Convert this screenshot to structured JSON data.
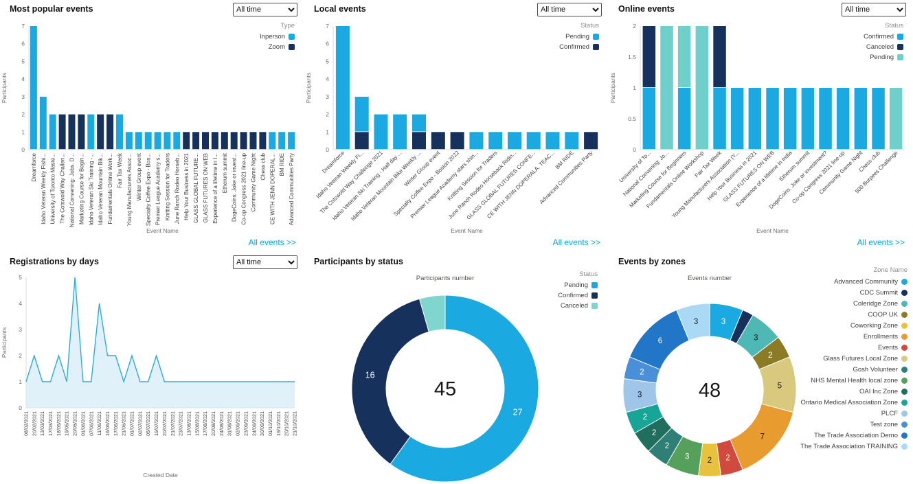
{
  "filters": {
    "time_range": "All time"
  },
  "links": {
    "all_events": "All events >>"
  },
  "panels": {
    "most_popular": {
      "title": "Most popular events"
    },
    "local": {
      "title": "Local events"
    },
    "online": {
      "title": "Online events"
    },
    "registrations": {
      "title": "Registrations by days"
    },
    "participants_status": {
      "title": "Participants by status"
    },
    "events_zones": {
      "title": "Events by zones"
    }
  },
  "chart_data": [
    {
      "panel": "most_popular",
      "type": "bar",
      "title": "Most popular events",
      "xlabel": "Event Name",
      "ylabel": "Participants",
      "ylim": [
        0,
        7
      ],
      "yticks": [
        0,
        1,
        2,
        3,
        4,
        5,
        6,
        7
      ],
      "legend_title": "Type",
      "legend": [
        "Inperson",
        "Zoom"
      ],
      "legend_shape": "square",
      "series_colors": {
        "Inperson": "#1BA9E1",
        "Zoom": "#16325C"
      },
      "bars": [
        {
          "label": "Dreamforce",
          "segments": [
            {
              "series": "Inperson",
              "value": 7
            }
          ]
        },
        {
          "label": "Idaho Veteran Weekly Fishi...",
          "segments": [
            {
              "series": "Inperson",
              "value": 3
            }
          ]
        },
        {
          "label": "University of Toronto Maste...",
          "segments": [
            {
              "series": "Inperson",
              "value": 2
            }
          ]
        },
        {
          "label": "The Cotswold Way Challen...",
          "segments": [
            {
              "series": "Zoom",
              "value": 2
            }
          ]
        },
        {
          "label": "National Convening: Jobs. D...",
          "segments": [
            {
              "series": "Zoom",
              "value": 2
            }
          ]
        },
        {
          "label": "Marketing Course for Begin...",
          "segments": [
            {
              "series": "Zoom",
              "value": 2
            }
          ]
        },
        {
          "label": "Idaho Veteran Ski Training -...",
          "segments": [
            {
              "series": "Inperson",
              "value": 2
            }
          ]
        },
        {
          "label": "Idaho Veteran Mountain Bik...",
          "segments": [
            {
              "series": "Zoom",
              "value": 2
            }
          ]
        },
        {
          "label": "Fundamentals Online Work...",
          "segments": [
            {
              "series": "Zoom",
              "value": 2
            }
          ]
        },
        {
          "label": "Fair Tax Week",
          "segments": [
            {
              "series": "Inperson",
              "value": 2
            }
          ]
        },
        {
          "label": "Young Manufacturers Assoc...",
          "segments": [
            {
              "series": "Inperson",
              "value": 1
            }
          ]
        },
        {
          "label": "Winter Group event",
          "segments": [
            {
              "series": "Inperson",
              "value": 1
            }
          ]
        },
        {
          "label": "Specialty Coffee Expo - Bos...",
          "segments": [
            {
              "series": "Inperson",
              "value": 1
            }
          ]
        },
        {
          "label": "Premier League Academy s...",
          "segments": [
            {
              "series": "Inperson",
              "value": 1
            }
          ]
        },
        {
          "label": "Knitting Session for Traders",
          "segments": [
            {
              "series": "Inperson",
              "value": 1
            }
          ]
        },
        {
          "label": "June Ranch Rodeo Horseb...",
          "segments": [
            {
              "series": "Inperson",
              "value": 1
            }
          ]
        },
        {
          "label": "Help Your Business in 2021",
          "segments": [
            {
              "series": "Zoom",
              "value": 1
            }
          ]
        },
        {
          "label": "GLASS GLOBAL FUTURE...",
          "segments": [
            {
              "series": "Zoom",
              "value": 1
            }
          ]
        },
        {
          "label": "GLASS FUTURES ON WEB",
          "segments": [
            {
              "series": "Zoom",
              "value": 1
            }
          ]
        },
        {
          "label": "Experience of a lifetime in I...",
          "segments": [
            {
              "series": "Zoom",
              "value": 1
            }
          ]
        },
        {
          "label": "Etherum summit",
          "segments": [
            {
              "series": "Zoom",
              "value": 1
            }
          ]
        },
        {
          "label": "DogeCoins. Joke or invest...",
          "segments": [
            {
              "series": "Zoom",
              "value": 1
            }
          ]
        },
        {
          "label": "Co-op Congress 2021 line-up",
          "segments": [
            {
              "series": "Zoom",
              "value": 1
            }
          ]
        },
        {
          "label": "Community Game Night",
          "segments": [
            {
              "series": "Zoom",
              "value": 1
            }
          ]
        },
        {
          "label": "Chess club",
          "segments": [
            {
              "series": "Zoom",
              "value": 1
            }
          ]
        },
        {
          "label": "CE WITH JENN DOPERAL...",
          "segments": [
            {
              "series": "Inperson",
              "value": 1
            }
          ]
        },
        {
          "label": "BM RIDE",
          "segments": [
            {
              "series": "Inperson",
              "value": 1
            }
          ]
        },
        {
          "label": "Advanced Communities Party",
          "segments": [
            {
              "series": "Inperson",
              "value": 1
            }
          ]
        }
      ]
    },
    {
      "panel": "local",
      "type": "bar",
      "title": "Local events",
      "xlabel": "Event Name",
      "ylabel": "Participants",
      "ylim": [
        0,
        7
      ],
      "yticks": [
        0,
        1,
        2,
        3,
        4,
        5,
        6,
        7
      ],
      "legend_title": "Status",
      "legend": [
        "Pending",
        "Confirmed"
      ],
      "legend_shape": "square",
      "series_colors": {
        "Pending": "#1BA9E1",
        "Confirmed": "#16325C"
      },
      "bars": [
        {
          "label": "Dreamforce",
          "segments": [
            {
              "series": "Pending",
              "value": 7
            }
          ]
        },
        {
          "label": "Idaho Veteran Weekly Fi...",
          "segments": [
            {
              "series": "Confirmed",
              "value": 1
            },
            {
              "series": "Pending",
              "value": 2
            }
          ]
        },
        {
          "label": "The Cotswold Way Challenge 2021",
          "segments": [
            {
              "series": "Pending",
              "value": 2
            }
          ]
        },
        {
          "label": "Idaho Veteran Ski Training - Half day ...",
          "segments": [
            {
              "series": "Pending",
              "value": 2
            }
          ]
        },
        {
          "label": "Idaho Veteran Mountain Bike Weekly ...",
          "segments": [
            {
              "series": "Confirmed",
              "value": 1
            },
            {
              "series": "Pending",
              "value": 1
            }
          ]
        },
        {
          "label": "Winter Group event",
          "segments": [
            {
              "series": "Confirmed",
              "value": 1
            }
          ]
        },
        {
          "label": "Specialty Coffee Expo - Boston 2022",
          "segments": [
            {
              "series": "Confirmed",
              "value": 1
            }
          ]
        },
        {
          "label": "Premier League Academy stars shin...",
          "segments": [
            {
              "series": "Pending",
              "value": 1
            }
          ]
        },
        {
          "label": "Knitting Session for Traders",
          "segments": [
            {
              "series": "Pending",
              "value": 1
            }
          ]
        },
        {
          "label": "June Ranch Rodeo Horseback Ridin...",
          "segments": [
            {
              "series": "Pending",
              "value": 1
            }
          ]
        },
        {
          "label": "GLASS GLOBAL FUTURES CONFE...",
          "segments": [
            {
              "series": "Pending",
              "value": 1
            }
          ]
        },
        {
          "label": "CE WITH JENN DOPERALA. TEAC...",
          "segments": [
            {
              "series": "Pending",
              "value": 1
            }
          ]
        },
        {
          "label": "BM RIDE",
          "segments": [
            {
              "series": "Pending",
              "value": 1
            }
          ]
        },
        {
          "label": "Advanced Communities Party",
          "segments": [
            {
              "series": "Confirmed",
              "value": 1
            }
          ]
        }
      ]
    },
    {
      "panel": "online",
      "type": "bar",
      "title": "Online events",
      "xlabel": "Event Name",
      "ylabel": "Participants",
      "ylim": [
        0,
        2
      ],
      "yticks": [
        0,
        0.5,
        1,
        1.5,
        2
      ],
      "legend_title": "Status",
      "legend": [
        "Confirmed",
        "Canceled",
        "Pending"
      ],
      "legend_shape": "square",
      "series_colors": {
        "Confirmed": "#1BA9E1",
        "Canceled": "#16325C",
        "Pending": "#6FCFCB"
      },
      "bars": [
        {
          "label": "University of To...",
          "segments": [
            {
              "series": "Confirmed",
              "value": 1
            },
            {
              "series": "Canceled",
              "value": 1
            }
          ]
        },
        {
          "label": "National Convening: Jo...",
          "segments": [
            {
              "series": "Pending",
              "value": 2
            }
          ]
        },
        {
          "label": "Marketing Course for Beginners",
          "segments": [
            {
              "series": "Confirmed",
              "value": 1
            },
            {
              "series": "Pending",
              "value": 1
            }
          ]
        },
        {
          "label": "Fundamentals Online Workshop",
          "segments": [
            {
              "series": "Pending",
              "value": 2
            }
          ]
        },
        {
          "label": "Fair Tax Week",
          "segments": [
            {
              "series": "Confirmed",
              "value": 1
            },
            {
              "series": "Canceled",
              "value": 1
            }
          ]
        },
        {
          "label": "Young Manufacturers Association (Y...",
          "segments": [
            {
              "series": "Confirmed",
              "value": 1
            }
          ]
        },
        {
          "label": "Help Your Business in 2021",
          "segments": [
            {
              "series": "Confirmed",
              "value": 1
            }
          ]
        },
        {
          "label": "GLASS FUTURES ON WEB",
          "segments": [
            {
              "series": "Confirmed",
              "value": 1
            }
          ]
        },
        {
          "label": "Experience of a lifetime in India",
          "segments": [
            {
              "series": "Confirmed",
              "value": 1
            }
          ]
        },
        {
          "label": "Etherum summit",
          "segments": [
            {
              "series": "Confirmed",
              "value": 1
            }
          ]
        },
        {
          "label": "DogeCoins. Joke or investment?",
          "segments": [
            {
              "series": "Confirmed",
              "value": 1
            }
          ]
        },
        {
          "label": "Co-op Congress 2021 line-up",
          "segments": [
            {
              "series": "Confirmed",
              "value": 1
            }
          ]
        },
        {
          "label": "Community Game Night",
          "segments": [
            {
              "series": "Confirmed",
              "value": 1
            }
          ]
        },
        {
          "label": "Chess club",
          "segments": [
            {
              "series": "Confirmed",
              "value": 1
            }
          ]
        },
        {
          "label": "500 Burpees Challenge",
          "segments": [
            {
              "series": "Pending",
              "value": 1
            }
          ]
        }
      ]
    },
    {
      "panel": "registrations",
      "type": "area",
      "title": "Registrations by days",
      "xlabel": "Created Date",
      "ylabel": "Participants",
      "ylim": [
        0,
        5
      ],
      "yticks": [
        0,
        1,
        2,
        3,
        4,
        5
      ],
      "line_color": "#2AACE3",
      "fill_color": "#DAEEF8",
      "x": [
        "08/02/2021",
        "20/02/2021",
        "13/03/2021",
        "17/03/2021",
        "18/05/2021",
        "19/05/2021",
        "20/05/2021",
        "01/06/2021",
        "07/06/2021",
        "11/06/2021",
        "16/06/2021",
        "17/06/2021",
        "21/06/2021",
        "01/07/2021",
        "02/07/2021",
        "05/07/2021",
        "19/07/2021",
        "20/07/2021",
        "21/07/2021",
        "23/07/2021",
        "13/08/2021",
        "15/08/2021",
        "17/08/2021",
        "20/08/2021",
        "24/08/2021",
        "31/08/2021",
        "02/09/2021",
        "23/09/2021",
        "24/09/2021",
        "30/09/2021",
        "01/10/2021",
        "19/10/2021",
        "20/10/2021",
        "21/10/2021"
      ],
      "values": [
        1,
        2,
        1,
        1,
        2,
        1,
        5,
        1,
        1,
        4,
        2,
        2,
        1,
        2,
        1,
        1,
        2,
        1,
        1,
        1,
        1,
        1,
        1,
        1,
        1,
        1,
        1,
        1,
        1,
        1,
        1,
        1,
        1,
        1
      ]
    },
    {
      "panel": "participants_status",
      "type": "donut",
      "title": "Participants by status",
      "axis_title": "Participants number",
      "center_total": 45,
      "legend_title": "Status",
      "legend": [
        "Pending",
        "Confirmed",
        "Canceled"
      ],
      "legend_shape": "square",
      "slices": [
        {
          "name": "Pending",
          "value": 27,
          "color": "#1BA9E1"
        },
        {
          "name": "Confirmed",
          "value": 16,
          "color": "#16325C"
        },
        {
          "name": "Canceled",
          "value": 2,
          "color": "#7FD6CE"
        }
      ]
    },
    {
      "panel": "events_zones",
      "type": "donut",
      "title": "Events by zones",
      "axis_title": "Events number",
      "center_total": 48,
      "legend_title": "Zone Name",
      "legend": [
        "Advanced Community",
        "CDC Summit",
        "Coleridge Zone",
        "COOP UK",
        "Coworking Zone",
        "Enrollments",
        "Events",
        "Glass Futures Local Zone",
        "Gosh Volunteer",
        "NHS Mental Health local zone",
        "OAI Inc Zone",
        "Ontario Medical Association Zone",
        "PLCF",
        "Test zone",
        "The Trade Association Demo",
        "The Trade Association TRAINING"
      ],
      "legend_shape": "round",
      "slices": [
        {
          "name": "Advanced Community",
          "value": 3,
          "color": "#1BA9E1"
        },
        {
          "name": "CDC Summit",
          "value": 1,
          "color": "#16325C"
        },
        {
          "name": "Coleridge Zone",
          "value": 3,
          "color": "#4EB9B4"
        },
        {
          "name": "COOP UK",
          "value": 2,
          "color": "#8C7B25"
        },
        {
          "name": "Glass Futures Local Zone",
          "value": 5,
          "color": "#D9C97E"
        },
        {
          "name": "Enrollments",
          "value": 7,
          "color": "#E89B2E"
        },
        {
          "name": "Events",
          "value": 2,
          "color": "#D04A3E"
        },
        {
          "name": "Coworking Zone",
          "value": 2,
          "color": "#E8C23A"
        },
        {
          "name": "NHS Mental Health local zone",
          "value": 3,
          "color": "#55A05A"
        },
        {
          "name": "Gosh Volunteer",
          "value": 2,
          "color": "#2E7F76"
        },
        {
          "name": "OAI Inc Zone",
          "value": 2,
          "color": "#1F6E5E"
        },
        {
          "name": "Ontario Medical Association Zone",
          "value": 2,
          "color": "#16A596"
        },
        {
          "name": "PLCF",
          "value": 3,
          "color": "#9FC5E8"
        },
        {
          "name": "Test zone",
          "value": 2,
          "color": "#4A90D9"
        },
        {
          "name": "The Trade Association Demo",
          "value": 6,
          "color": "#2176C7"
        },
        {
          "name": "The Trade Association TRAINING",
          "value": 3,
          "color": "#A9D9F5"
        }
      ]
    }
  ]
}
